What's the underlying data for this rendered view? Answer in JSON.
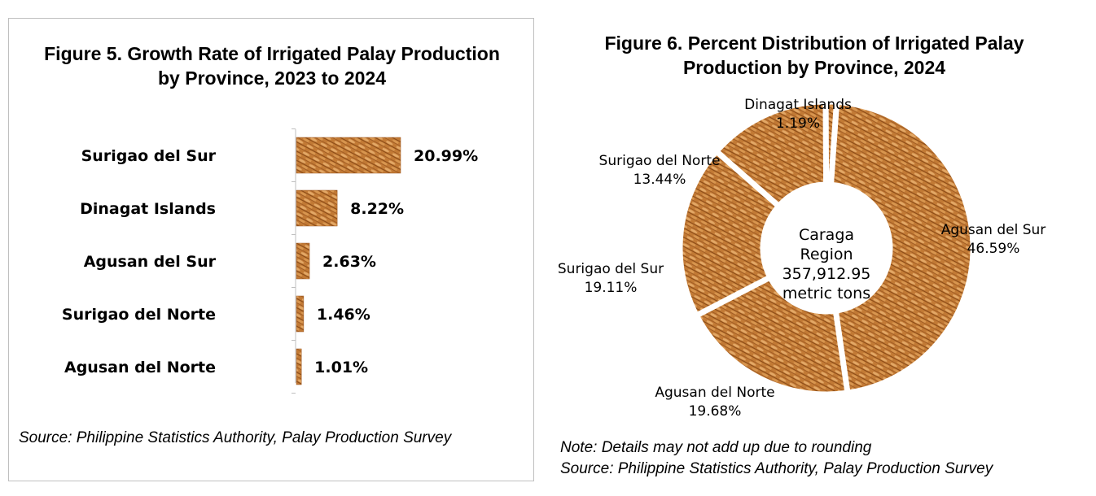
{
  "fig5": {
    "title_line1": "Figure 5. Growth Rate of Irrigated Palay Production",
    "title_line2": "by Province, 2023 to 2024",
    "source": "Source: Philippine Statistics Authority, Palay Production Survey"
  },
  "fig6": {
    "title_line1": "Figure 6.  Percent Distribution of Irrigated Palay",
    "title_line2": "Production by Province, 2024",
    "center_line1": "Caraga",
    "center_line2": "Region",
    "center_line3": "357,912.95",
    "center_line4": "metric tons",
    "note": "Note: Details may not add up due to rounding",
    "source": "Source: Philippine Statistics Authority, Palay Production Survey"
  },
  "colors": {
    "grain_base": "#c27a35",
    "grain_dark": "#8a4b17",
    "grain_light": "#e3a866"
  },
  "chart_data": [
    {
      "type": "bar",
      "orientation": "horizontal",
      "title": "Figure 5. Growth Rate of Irrigated Palay Production by Province, 2023 to 2024",
      "categories": [
        "Surigao del Sur",
        "Dinagat Islands",
        "Agusan del Sur",
        "Surigao del Norte",
        "Agusan del Norte"
      ],
      "values": [
        20.99,
        8.22,
        2.63,
        1.46,
        1.01
      ],
      "value_labels": [
        "20.99%",
        "8.22%",
        "2.63%",
        "1.46%",
        "1.01%"
      ],
      "grid": false,
      "legend": "none"
    },
    {
      "type": "pie",
      "variant": "donut",
      "title": "Figure 6.  Percent Distribution of Irrigated Palay Production by Province, 2024",
      "categories": [
        "Agusan del Sur",
        "Agusan del Norte",
        "Surigao del Sur",
        "Surigao del Norte",
        "Dinagat Islands"
      ],
      "values": [
        46.59,
        19.68,
        19.11,
        13.44,
        1.19
      ],
      "value_labels": [
        "46.59%",
        "19.68%",
        "19.11%",
        "13.44%",
        "1.19%"
      ],
      "legend": "none"
    }
  ]
}
